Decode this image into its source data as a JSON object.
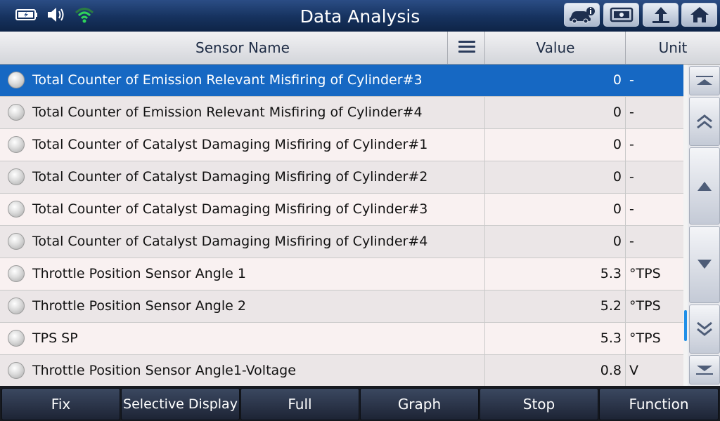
{
  "title": "Data Analysis",
  "status_icons": [
    "battery-icon",
    "speaker-icon",
    "wifi-icon"
  ],
  "toolbar": [
    "vehicle-info-icon",
    "screenshot-icon",
    "back-icon",
    "home-icon"
  ],
  "header": {
    "name": "Sensor Name",
    "value": "Value",
    "unit": "Unit"
  },
  "rows": [
    {
      "name": "Total Counter of Emission Relevant Misfiring of Cylinder#3",
      "value": "0",
      "unit": "-"
    },
    {
      "name": "Total Counter of Emission Relevant Misfiring of Cylinder#4",
      "value": "0",
      "unit": "-"
    },
    {
      "name": "Total Counter of Catalyst Damaging Misfiring of Cylinder#1",
      "value": "0",
      "unit": "-"
    },
    {
      "name": "Total Counter of Catalyst Damaging Misfiring of Cylinder#2",
      "value": "0",
      "unit": "-"
    },
    {
      "name": "Total Counter of Catalyst Damaging Misfiring of Cylinder#3",
      "value": "0",
      "unit": "-"
    },
    {
      "name": "Total Counter of Catalyst Damaging Misfiring of Cylinder#4",
      "value": "0",
      "unit": "-"
    },
    {
      "name": "Throttle Position Sensor Angle 1",
      "value": "5.3",
      "unit": "°TPS"
    },
    {
      "name": "Throttle Position Sensor Angle 2",
      "value": "5.2",
      "unit": "°TPS"
    },
    {
      "name": "TPS SP",
      "value": "5.3",
      "unit": "°TPS"
    },
    {
      "name": "Throttle Position Sensor Angle1-Voltage",
      "value": "0.8",
      "unit": "V"
    }
  ],
  "selected_row": 0,
  "bottom": {
    "fix": "Fix",
    "selective": "Selective Display",
    "full": "Full",
    "graph": "Graph",
    "stop": "Stop",
    "function": "Function"
  },
  "colors": {
    "selected_row": "#1668c3",
    "accent_wifi": "#2fd35a",
    "scroll_thumb": "#1f8fe8"
  }
}
